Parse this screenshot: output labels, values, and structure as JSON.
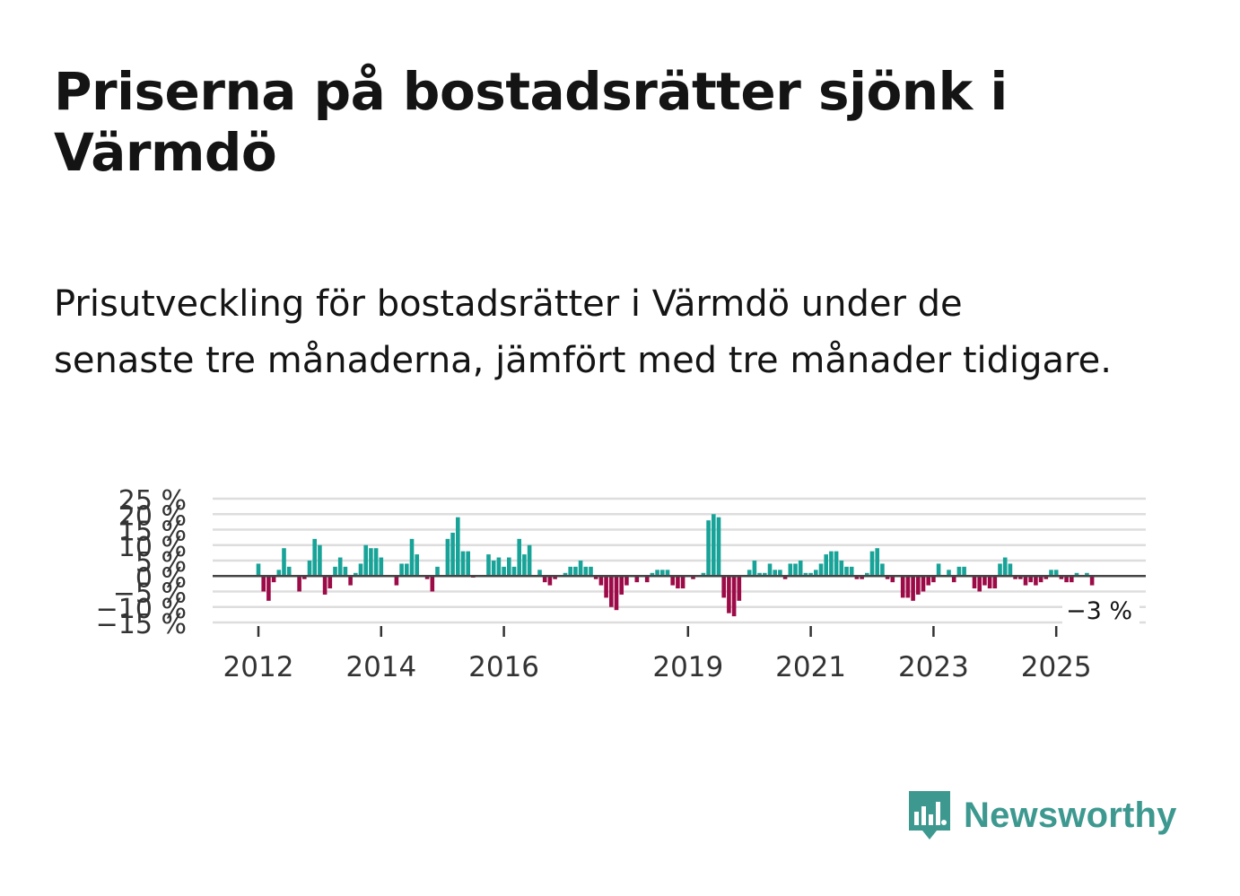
{
  "title": "Priserna på bostadsrätter sjönk i Värmdö",
  "subtitle": "Prisutveckling för bostadsrätter i Värmdö under de senaste tre månaderna, jämfört med tre månader tidigare.",
  "brand": {
    "name": "Newsworthy",
    "color": "#3d9990",
    "icon": "newsworthy-logo-icon"
  },
  "colors": {
    "positive": "#17a398",
    "negative": "#9c0a47",
    "grid": "#dddddd",
    "zero": "#444444"
  },
  "chart_data": {
    "type": "bar",
    "title": "",
    "xlabel": "",
    "ylabel": "",
    "ylim": [
      -15,
      25
    ],
    "y_ticks": [
      25,
      20,
      15,
      10,
      5,
      0,
      -5,
      -10,
      -15
    ],
    "y_tick_labels": [
      "25 %",
      "20 %",
      "15 %",
      "10 %",
      "5 %",
      "0 %",
      "−5 %",
      "−10 %",
      "−15 %"
    ],
    "x_ticks": [
      {
        "label": "2012",
        "index": 0
      },
      {
        "label": "2014",
        "index": 24
      },
      {
        "label": "2016",
        "index": 48
      },
      {
        "label": "2019",
        "index": 84
      },
      {
        "label": "2021",
        "index": 108
      },
      {
        "label": "2023",
        "index": 132
      },
      {
        "label": "2025",
        "index": 156
      }
    ],
    "start": "2012-01",
    "last_value_label": "−3 %",
    "values": [
      4,
      -5,
      -8,
      -2,
      2,
      9,
      3,
      0,
      -5,
      -1,
      5,
      12,
      10,
      -6,
      -4,
      3,
      6,
      3,
      -3,
      1,
      4,
      10,
      9,
      9,
      6,
      0,
      0,
      -3,
      4,
      4,
      12,
      7,
      0,
      -1,
      -5,
      3,
      0,
      12,
      14,
      19,
      8,
      8,
      -0.5,
      0,
      0,
      7,
      5,
      6,
      3,
      6,
      3,
      12,
      7,
      10,
      0,
      2,
      -2,
      -3,
      -1,
      0,
      1,
      3,
      3,
      5,
      3,
      3,
      -1,
      -3,
      -7,
      -10,
      -11,
      -6,
      -3,
      0,
      -2,
      0,
      -2,
      1,
      2,
      2,
      2,
      -3,
      -4,
      -4,
      0,
      -1,
      0,
      1,
      18,
      20,
      19,
      -7,
      -12,
      -13,
      -8,
      0,
      2,
      5,
      1,
      1,
      4,
      2,
      2,
      -1,
      4,
      4,
      5,
      1,
      1,
      2,
      4,
      7,
      8,
      8,
      5,
      3,
      3,
      -1,
      -1,
      1,
      8,
      9,
      4,
      -1,
      -2,
      0,
      -7,
      -7,
      -8,
      -6,
      -5,
      -3,
      -2,
      4,
      0,
      2,
      -2,
      3,
      3,
      0,
      -4,
      -5,
      -3,
      -4,
      -4,
      4,
      6,
      4,
      -1,
      -1,
      -3,
      -2,
      -3,
      -2,
      -1,
      2,
      2,
      -1,
      -2,
      -2,
      1,
      0,
      1,
      -3
    ]
  }
}
